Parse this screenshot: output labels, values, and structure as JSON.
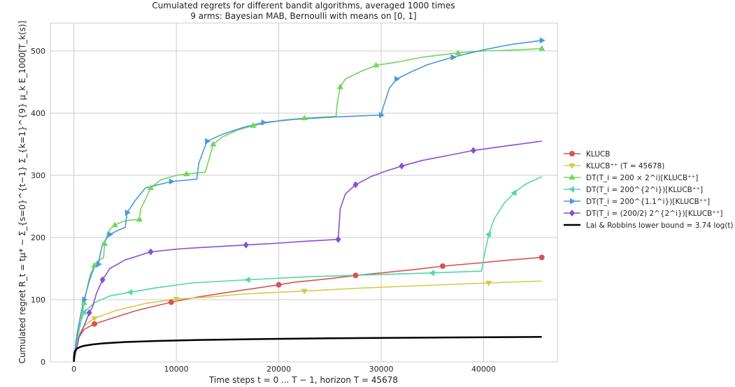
{
  "chart_data": {
    "type": "line",
    "title": "Cumulated regrets for different bandit algorithms, averaged 1000 times",
    "subtitle": "9 arms: Bayesian MAB, Bernoulli with means on [0, 1]",
    "xlabel": "Time steps t = 0 ... T − 1, horizon T = 45678",
    "ylabel": "Cumulated regret R_t = tμ* − Σ_{s=0}^{t−1} Σ_{k=1}^{9} μ_k E_1000[T_k(s)]",
    "xlim": [
      -2300,
      47200
    ],
    "ylim": [
      0,
      545
    ],
    "xticks": [
      0,
      10000,
      20000,
      30000,
      40000
    ],
    "xtick_labels": [
      "0",
      "10000",
      "20000",
      "30000",
      "40000"
    ],
    "yticks": [
      0,
      100,
      200,
      300,
      400,
      500
    ],
    "ytick_labels": [
      "0",
      "100",
      "200",
      "300",
      "400",
      "500"
    ],
    "grid": true,
    "legend_position": "outside-right",
    "series": [
      {
        "name": "KLUCB",
        "color": "#d9534f",
        "marker": "circle",
        "x": [
          0,
          300,
          1000,
          2000,
          3500,
          6000,
          9500,
          12000,
          15500,
          20000,
          21500,
          25000,
          27500,
          30000,
          33500,
          36000,
          39500,
          42000,
          45678
        ],
        "y": [
          0,
          35,
          52,
          61,
          69,
          82,
          96,
          104,
          113,
          124,
          128,
          134,
          139,
          143,
          149,
          154,
          159,
          163,
          168
        ]
      },
      {
        "name": "KLUCB⁺⁺ (T = 45678)",
        "color": "#d6c94c",
        "marker": "triangle-down",
        "x": [
          0,
          300,
          1000,
          2000,
          4000,
          7000,
          10000,
          13000,
          16500,
          22500,
          28500,
          34500,
          40500,
          45678
        ],
        "y": [
          0,
          38,
          58,
          70,
          82,
          94,
          101,
          104,
          109,
          114,
          119,
          123,
          127,
          130
        ]
      },
      {
        "name": "DT(T_i = 200 × 2^i)[KLUCB⁺⁺]",
        "color": "#6fd65b",
        "marker": "triangle-up",
        "x": [
          0,
          300,
          600,
          1000,
          1400,
          1600,
          2000,
          2400,
          2900,
          3000,
          3300,
          3600,
          4000,
          4800,
          5500,
          6400,
          6500,
          7000,
          7500,
          8500,
          10000,
          11000,
          12800,
          13000,
          13600,
          14500,
          16000,
          17500,
          19000,
          20500,
          22500,
          25600,
          25700,
          26000,
          26500,
          28000,
          29500,
          31500,
          34000,
          37500,
          40000,
          43500,
          45678
        ],
        "y": [
          0,
          36,
          58,
          95,
          127,
          140,
          155,
          163,
          168,
          190,
          207,
          215,
          220,
          226,
          228,
          229,
          245,
          262,
          280,
          293,
          300,
          302,
          305,
          315,
          350,
          362,
          373,
          380,
          385,
          389,
          392,
          395,
          415,
          442,
          455,
          467,
          477,
          482,
          490,
          497,
          500,
          502,
          504
        ]
      },
      {
        "name": "DT(T_i = 200^{2^i})[KLUCB⁺⁺]",
        "color": "#4fd8a9",
        "marker": "triangle-left",
        "x": [
          0,
          200,
          500,
          1000,
          2000,
          3500,
          5500,
          8000,
          11500,
          17000,
          23000,
          29000,
          35000,
          39800,
          40000,
          40500,
          41000,
          42000,
          43000,
          44000,
          45678
        ],
        "y": [
          0,
          35,
          57,
          80,
          95,
          106,
          112,
          119,
          127,
          132,
          137,
          140,
          143,
          146,
          166,
          205,
          229,
          255,
          272,
          285,
          298
        ]
      },
      {
        "name": "DT(T_i = 200^{1.1^i})[KLUCB⁺⁺]",
        "color": "#4a98dc",
        "marker": "triangle-right",
        "x": [
          0,
          300,
          700,
          1000,
          1500,
          2000,
          2400,
          2500,
          2800,
          3500,
          4500,
          5000,
          5200,
          6000,
          7000,
          9500,
          12000,
          12200,
          13000,
          14500,
          16500,
          18500,
          21500,
          25500,
          30000,
          30200,
          30800,
          31500,
          33000,
          34500,
          37000,
          40000,
          42500,
          45678
        ],
        "y": [
          0,
          45,
          79,
          100,
          130,
          153,
          157,
          168,
          190,
          205,
          213,
          216,
          240,
          260,
          280,
          290,
          294,
          320,
          355,
          366,
          377,
          385,
          390,
          394,
          397,
          410,
          440,
          455,
          467,
          478,
          490,
          502,
          510,
          517
        ]
      },
      {
        "name": "DT(T_i = (200/2) 2^{2^i})[KLUCB⁺⁺]",
        "color": "#8a4ed3",
        "marker": "diamond",
        "x": [
          0,
          500,
          1000,
          1500,
          1800,
          2200,
          2800,
          3500,
          5000,
          7500,
          10500,
          13500,
          16800,
          20000,
          22500,
          25800,
          26000,
          26500,
          27500,
          29000,
          30500,
          32000,
          34000,
          36500,
          39000,
          42500,
          45678
        ],
        "y": [
          0,
          40,
          58,
          79,
          88,
          110,
          132,
          150,
          164,
          177,
          182,
          185,
          188,
          191,
          194,
          197,
          246,
          270,
          285,
          298,
          307,
          315,
          324,
          332,
          340,
          348,
          355
        ]
      },
      {
        "name": "Lai & Robbins lower bound = 3.74 log(t)",
        "color": "#000000",
        "marker": "none",
        "x": [
          1,
          10,
          50,
          100,
          300,
          600,
          1000,
          2000,
          3000,
          5000,
          8000,
          12000,
          17000,
          25000,
          35000,
          45678
        ],
        "y": [
          0,
          8.6,
          14.6,
          17.2,
          21.3,
          23.9,
          25.8,
          28.4,
          29.9,
          31.9,
          33.6,
          35.1,
          36.4,
          37.9,
          39.1,
          40.1
        ]
      }
    ]
  }
}
